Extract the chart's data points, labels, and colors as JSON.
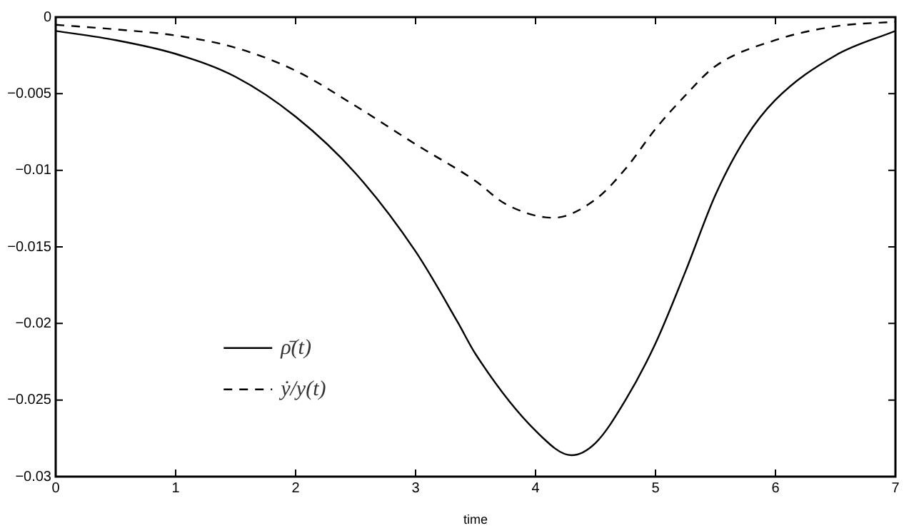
{
  "chart_data": {
    "type": "line",
    "xlabel": "time",
    "xlim": [
      0,
      7
    ],
    "xticks": [
      0,
      1,
      2,
      3,
      4,
      5,
      6,
      7
    ],
    "ylim": [
      -0.03,
      0
    ],
    "yticks": [
      -0.03,
      -0.025,
      -0.02,
      -0.015,
      -0.01,
      -0.005,
      0
    ],
    "grid": false,
    "legend": "center left",
    "marker": "none",
    "series": [
      {
        "name": "ρ̄(t)",
        "color": "#000000",
        "line_style": "solid",
        "x": [
          0,
          0.5,
          1,
          1.5,
          2,
          2.5,
          3,
          3.35,
          3.5,
          4,
          4.3,
          4.5,
          4.75,
          5,
          5.25,
          5.5,
          5.75,
          6,
          6.5,
          7
        ],
        "values": [
          -0.0009,
          -0.0015,
          -0.0024,
          -0.0039,
          -0.0065,
          -0.0102,
          -0.0153,
          -0.0199,
          -0.022,
          -0.027,
          -0.0286,
          -0.0278,
          -0.025,
          -0.0213,
          -0.0166,
          -0.0116,
          -0.0079,
          -0.0054,
          -0.0025,
          -0.0009
        ]
      },
      {
        "name": "ẏ/y(t)",
        "color": "#000000",
        "line_style": "dashed",
        "x": [
          0,
          0.5,
          1,
          1.5,
          2,
          2.5,
          3,
          3.5,
          3.75,
          4.15,
          4.5,
          4.75,
          5,
          5.25,
          5.5,
          6,
          6.5,
          7
        ],
        "values": [
          -0.0005,
          -0.0008,
          -0.0012,
          -0.002,
          -0.0035,
          -0.0058,
          -0.0083,
          -0.0107,
          -0.0122,
          -0.0131,
          -0.0119,
          -0.0099,
          -0.0073,
          -0.0051,
          -0.0032,
          -0.0015,
          -0.0006,
          -0.0003
        ]
      }
    ]
  }
}
